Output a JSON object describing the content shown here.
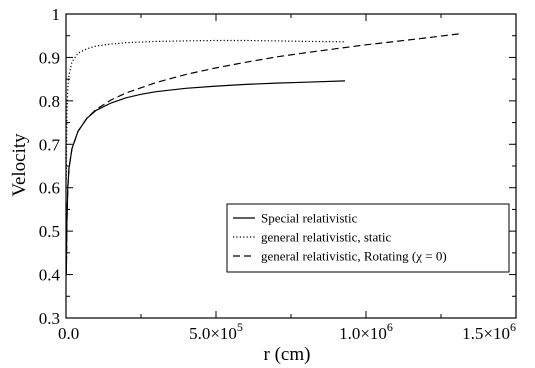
{
  "chart_data": {
    "type": "line",
    "title": "",
    "xlabel": "r (cm)",
    "ylabel": "Velocity",
    "xlim": [
      0,
      1500000
    ],
    "ylim": [
      0.3,
      1.0
    ],
    "x_ticks": [
      {
        "value": 0,
        "label": "0.0"
      },
      {
        "value": 500000,
        "label": "5.0×10",
        "exp": "5"
      },
      {
        "value": 1000000,
        "label": "1.0×10",
        "exp": "6"
      },
      {
        "value": 1500000,
        "label": "1.5×10",
        "exp": "6"
      }
    ],
    "y_ticks": [
      {
        "value": 0.3,
        "label": "0.3"
      },
      {
        "value": 0.4,
        "label": "0.4"
      },
      {
        "value": 0.5,
        "label": "0.5"
      },
      {
        "value": 0.6,
        "label": "0.6"
      },
      {
        "value": 0.7,
        "label": "0.7"
      },
      {
        "value": 0.8,
        "label": "0.8"
      },
      {
        "value": 0.9,
        "label": "0.9"
      },
      {
        "value": 1.0,
        "label": "1"
      }
    ],
    "grid": false,
    "legend_position": "bottom-right",
    "series": [
      {
        "name": "Special relativistic",
        "style": "solid",
        "x": [
          1000,
          3000,
          6000,
          10000,
          20000,
          40000,
          70000,
          100000,
          150000,
          200000,
          250000,
          300000,
          400000,
          500000,
          600000,
          700000,
          800000,
          930000
        ],
        "y": [
          0.4,
          0.52,
          0.6,
          0.645,
          0.69,
          0.73,
          0.76,
          0.778,
          0.795,
          0.807,
          0.815,
          0.821,
          0.829,
          0.834,
          0.838,
          0.841,
          0.843,
          0.846
        ]
      },
      {
        "name": "general relativistic, static",
        "style": "dotted",
        "x": [
          1000,
          3000,
          6000,
          10000,
          20000,
          40000,
          70000,
          100000,
          150000,
          200000,
          300000,
          400000,
          500000,
          600000,
          700000,
          800000,
          930000
        ],
        "y": [
          0.62,
          0.77,
          0.83,
          0.86,
          0.89,
          0.91,
          0.92,
          0.926,
          0.931,
          0.934,
          0.937,
          0.938,
          0.939,
          0.939,
          0.938,
          0.937,
          0.936
        ]
      },
      {
        "name": "general relativistic, Rotating (χ = 0)",
        "style": "dashed",
        "x": [
          1000,
          3000,
          6000,
          10000,
          20000,
          40000,
          70000,
          100000,
          150000,
          200000,
          300000,
          400000,
          500000,
          600000,
          700000,
          800000,
          900000,
          1000000,
          1100000,
          1200000,
          1320000
        ],
        "y": [
          0.4,
          0.52,
          0.6,
          0.645,
          0.69,
          0.73,
          0.76,
          0.78,
          0.802,
          0.818,
          0.842,
          0.861,
          0.876,
          0.889,
          0.901,
          0.911,
          0.92,
          0.929,
          0.937,
          0.945,
          0.955
        ]
      }
    ]
  }
}
